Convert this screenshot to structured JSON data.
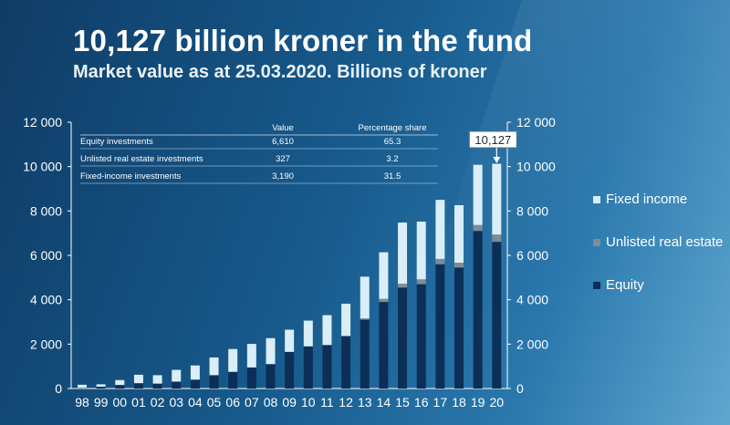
{
  "header": {
    "title": "10,127 billion kroner in the fund",
    "subtitle": "Market value as at 25.03.2020. Billions of kroner"
  },
  "table": {
    "headers": [
      "",
      "Value",
      "Percentage share"
    ],
    "rows": [
      [
        "Equity investments",
        "6,610",
        "65.3"
      ],
      [
        "Unlisted real estate investments",
        "327",
        "3.2"
      ],
      [
        "Fixed-income investments",
        "3,190",
        "31.5"
      ]
    ]
  },
  "callout": "10,127",
  "legend": [
    {
      "label": "Fixed income",
      "color": "#d9eef8"
    },
    {
      "label": "Unlisted real estate",
      "color": "#7f8c96"
    },
    {
      "label": "Equity",
      "color": "#0c2f57"
    }
  ],
  "chart_data": {
    "type": "bar",
    "stacked": true,
    "categories": [
      "98",
      "99",
      "00",
      "01",
      "02",
      "03",
      "04",
      "05",
      "06",
      "07",
      "08",
      "09",
      "10",
      "11",
      "12",
      "13",
      "14",
      "15",
      "16",
      "17",
      "18",
      "19",
      "20"
    ],
    "series": [
      {
        "name": "Equity",
        "color": "#0c2f57",
        "values": [
          20,
          80,
          160,
          240,
          220,
          310,
          400,
          600,
          750,
          950,
          1100,
          1650,
          1900,
          1950,
          2350,
          3100,
          3900,
          4550,
          4700,
          5600,
          5450,
          7100,
          6610
        ]
      },
      {
        "name": "Unlisted real estate",
        "color": "#7f8c96",
        "values": [
          0,
          0,
          0,
          0,
          0,
          0,
          0,
          0,
          0,
          0,
          0,
          0,
          0,
          15,
          30,
          60,
          140,
          170,
          220,
          240,
          220,
          270,
          327
        ]
      },
      {
        "name": "Fixed income",
        "color": "#d9eef8",
        "values": [
          150,
          110,
          220,
          380,
          380,
          530,
          640,
          800,
          1030,
          1060,
          1170,
          1000,
          1160,
          1340,
          1440,
          1880,
          2100,
          2760,
          2600,
          2660,
          2590,
          2710,
          3190
        ]
      }
    ],
    "yticks": [
      "0",
      "2 000",
      "4 000",
      "6 000",
      "8 000",
      "10 000",
      "12 000"
    ],
    "ylim": [
      0,
      12000
    ]
  }
}
